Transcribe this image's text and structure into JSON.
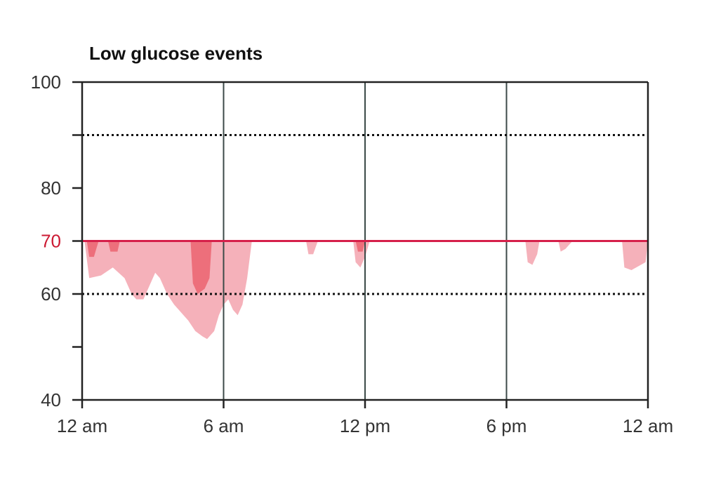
{
  "chart_data": {
    "type": "area",
    "title": "Low glucose events",
    "xlabel": "",
    "ylabel": "",
    "x_unit": "hours since midnight",
    "xlim": [
      0,
      24
    ],
    "ylim": [
      40,
      100
    ],
    "x_ticks": [
      {
        "value": 0,
        "label": "12 am"
      },
      {
        "value": 6,
        "label": "6 am"
      },
      {
        "value": 12,
        "label": "12 pm"
      },
      {
        "value": 18,
        "label": "6 pm"
      },
      {
        "value": 24,
        "label": "12 am"
      }
    ],
    "y_ticks": [
      {
        "value": 100,
        "label": "100"
      },
      {
        "value": 90,
        "label": ""
      },
      {
        "value": 80,
        "label": "80"
      },
      {
        "value": 70,
        "label": "70"
      },
      {
        "value": 60,
        "label": "60"
      },
      {
        "value": 50,
        "label": ""
      },
      {
        "value": 40,
        "label": "40"
      }
    ],
    "threshold": {
      "value": 70,
      "color": "#d6204a"
    },
    "dotted_gridlines": [
      90,
      60
    ],
    "vertical_gridlines": [
      6,
      12,
      18
    ],
    "colors": {
      "light_area": "#f4a9b3",
      "dark_area": "#ea5a66",
      "threshold_label": "#cc1a33"
    },
    "series": [
      {
        "values": [
          [
            0.1,
            70
          ],
          [
            0.3,
            63
          ],
          [
            0.8,
            63.5
          ],
          [
            1.3,
            65
          ],
          [
            1.8,
            63
          ],
          [
            2.1,
            60
          ],
          [
            2.3,
            59
          ],
          [
            2.6,
            59
          ],
          [
            2.9,
            62
          ],
          [
            3.1,
            64
          ],
          [
            3.3,
            63
          ],
          [
            3.6,
            60
          ],
          [
            3.9,
            58
          ],
          [
            4.1,
            57
          ],
          [
            4.3,
            56
          ],
          [
            4.5,
            55
          ],
          [
            4.8,
            53
          ],
          [
            5.1,
            52
          ],
          [
            5.3,
            51.5
          ],
          [
            5.6,
            53
          ],
          [
            5.8,
            56
          ],
          [
            6.0,
            58
          ],
          [
            6.2,
            59
          ],
          [
            6.4,
            57
          ],
          [
            6.6,
            56
          ],
          [
            6.8,
            58
          ],
          [
            7.0,
            63
          ],
          [
            7.2,
            70
          ]
        ]
      },
      {
        "values": [
          [
            9.5,
            70
          ],
          [
            9.6,
            67.5
          ],
          [
            9.8,
            67.5
          ],
          [
            10.0,
            70
          ]
        ]
      },
      {
        "values": [
          [
            11.5,
            70
          ],
          [
            11.6,
            66
          ],
          [
            11.8,
            65
          ],
          [
            12.0,
            67
          ],
          [
            12.2,
            70
          ]
        ]
      },
      {
        "values": [
          [
            18.8,
            70
          ],
          [
            18.9,
            66
          ],
          [
            19.1,
            65.5
          ],
          [
            19.3,
            67.5
          ],
          [
            19.4,
            70
          ]
        ]
      },
      {
        "values": [
          [
            20.2,
            70
          ],
          [
            20.3,
            68
          ],
          [
            20.5,
            68.5
          ],
          [
            20.8,
            70
          ]
        ]
      },
      {
        "values": [
          [
            22.9,
            70
          ],
          [
            23.0,
            65
          ],
          [
            23.3,
            64.5
          ],
          [
            23.7,
            65.5
          ],
          [
            23.9,
            66
          ],
          [
            24.0,
            70
          ]
        ]
      },
      {
        "values": [
          [
            0.2,
            70
          ],
          [
            0.3,
            67
          ],
          [
            0.5,
            67
          ],
          [
            0.7,
            70
          ]
        ]
      },
      {
        "values": [
          [
            1.1,
            70
          ],
          [
            1.2,
            68
          ],
          [
            1.5,
            68
          ],
          [
            1.6,
            70
          ]
        ]
      },
      {
        "values": [
          [
            4.6,
            70
          ],
          [
            4.7,
            62
          ],
          [
            4.9,
            60
          ],
          [
            5.2,
            61
          ],
          [
            5.4,
            63
          ],
          [
            5.5,
            70
          ]
        ]
      },
      {
        "values": [
          [
            11.6,
            70
          ],
          [
            11.7,
            68
          ],
          [
            11.9,
            68
          ],
          [
            12.0,
            70
          ]
        ]
      }
    ]
  }
}
